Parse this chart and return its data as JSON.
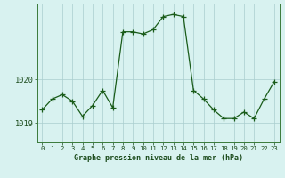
{
  "x": [
    0,
    1,
    2,
    3,
    4,
    5,
    6,
    7,
    8,
    9,
    10,
    11,
    12,
    13,
    14,
    15,
    16,
    17,
    18,
    19,
    20,
    21,
    22,
    23
  ],
  "y": [
    1019.3,
    1019.55,
    1019.65,
    1019.5,
    1019.15,
    1019.4,
    1019.75,
    1019.35,
    1021.1,
    1021.1,
    1021.05,
    1021.15,
    1021.45,
    1021.5,
    1021.45,
    1019.75,
    1019.55,
    1019.3,
    1019.1,
    1019.1,
    1019.25,
    1019.1,
    1019.55,
    1019.95
  ],
  "line_color": "#1a5c1a",
  "marker": "+",
  "marker_size": 4,
  "bg_color": "#d8f2f0",
  "grid_color": "#aacece",
  "xlabel": "Graphe pression niveau de la mer (hPa)",
  "ytick_labels": [
    "1019",
    "1020"
  ],
  "ytick_vals": [
    1019,
    1020
  ],
  "ylim": [
    1018.55,
    1021.75
  ],
  "xlim": [
    -0.5,
    23.5
  ],
  "fig_bg": "#d8f2f0",
  "border_color": "#3a7a3a",
  "text_color": "#1a4a1a",
  "xlabel_fontsize": 6.0,
  "xtick_fontsize": 5.2,
  "ytick_fontsize": 6.2
}
